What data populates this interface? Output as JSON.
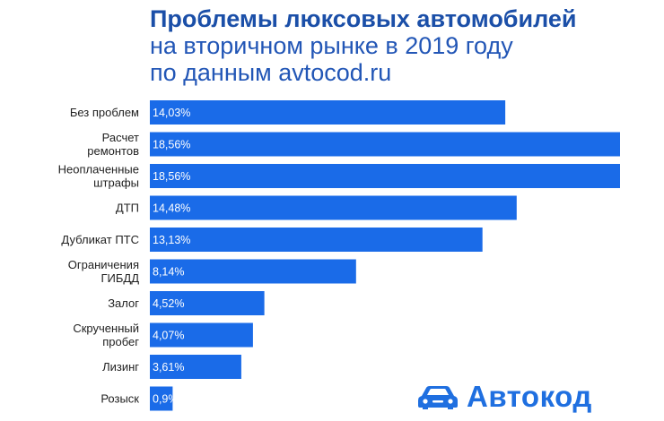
{
  "title": {
    "line1": "Проблемы люксовых автомобилей",
    "line2": "на вторичном рынке в 2019 году",
    "line3": "по данным avtocod.ru"
  },
  "logo": {
    "text": "Автокод",
    "icon": "car-icon"
  },
  "colors": {
    "bar": "#1a6be8",
    "title": "#1b4fa8",
    "logo": "#1f6fe0"
  },
  "chart_data": {
    "type": "bar",
    "orientation": "horizontal",
    "categories": [
      [
        "Без проблем"
      ],
      [
        "Расчет",
        "ремонтов"
      ],
      [
        "Неоплаченные",
        "штрафы"
      ],
      [
        "ДТП"
      ],
      [
        "Дубликат ПТС"
      ],
      [
        "Ограничения",
        "ГИБДД"
      ],
      [
        "Залог"
      ],
      [
        "Скрученный",
        "пробег"
      ],
      [
        "Лизинг"
      ],
      [
        "Розыск"
      ]
    ],
    "values": [
      14.03,
      18.56,
      18.56,
      14.48,
      13.13,
      8.14,
      4.52,
      4.07,
      3.61,
      0.9
    ],
    "labels": [
      "14,03%",
      "18,56%",
      "18,56%",
      "14,48%",
      "13,13%",
      "8,14%",
      "4,52%",
      "4,07%",
      "3,61%",
      "0,9%"
    ],
    "xlim": [
      0,
      18.56
    ],
    "grid": false,
    "legend": "none"
  }
}
